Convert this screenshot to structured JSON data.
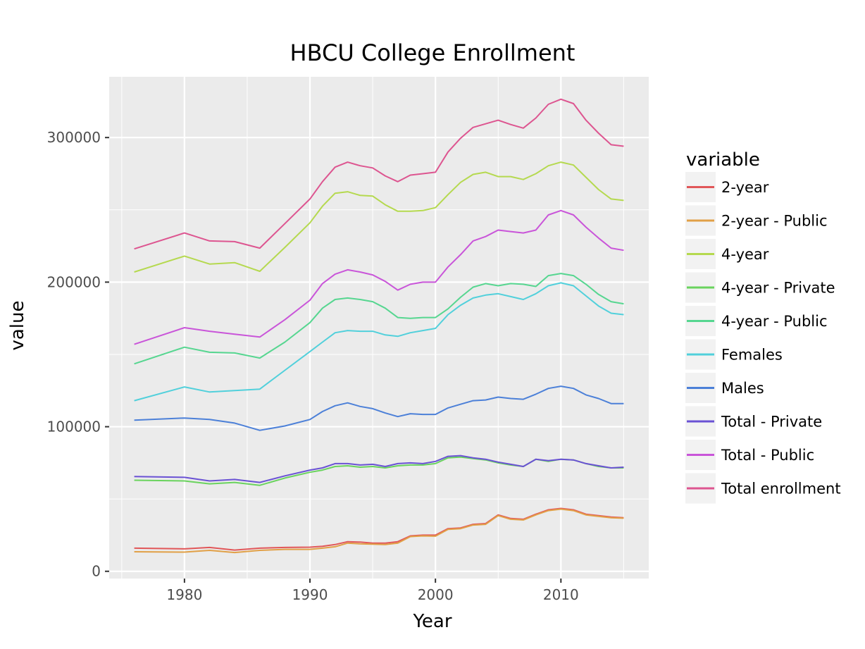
{
  "chart_data": {
    "type": "line",
    "title": "HBCU College Enrollment",
    "xlabel": "Year",
    "ylabel": "value",
    "xlim": [
      1974,
      2017
    ],
    "ylim": [
      -5000,
      342000
    ],
    "x_ticks": [
      1980,
      1990,
      2000,
      2010
    ],
    "y_ticks": [
      0,
      100000,
      200000,
      300000
    ],
    "y_tick_labels": [
      "0",
      "100000",
      "200000",
      "300000"
    ],
    "grid": true,
    "legend_title": "variable",
    "legend_position": "right",
    "x": [
      1976,
      1980,
      1982,
      1984,
      1986,
      1988,
      1990,
      1991,
      1992,
      1993,
      1994,
      1995,
      1996,
      1997,
      1998,
      1999,
      2000,
      2001,
      2002,
      2003,
      2004,
      2005,
      2006,
      2007,
      2008,
      2009,
      2010,
      2011,
      2012,
      2013,
      2014,
      2015
    ],
    "series": [
      {
        "name": "2-year",
        "color": "#e15759",
        "values": [
          16000,
          15500,
          16500,
          14700,
          16000,
          16500,
          16700,
          17300,
          18500,
          20500,
          20200,
          19500,
          19500,
          20500,
          24500,
          25000,
          25000,
          29500,
          30000,
          32500,
          33000,
          39000,
          36500,
          36000,
          39500,
          42500,
          43500,
          42500,
          39500,
          38500,
          37500,
          37000
        ]
      },
      {
        "name": "2-year - Public",
        "color": "#e1a047",
        "values": [
          13500,
          13300,
          14500,
          13000,
          14500,
          15200,
          15200,
          16000,
          17000,
          19500,
          19000,
          18800,
          18500,
          19500,
          24000,
          24500,
          24300,
          29000,
          29500,
          32000,
          32500,
          38500,
          36000,
          35500,
          39000,
          42000,
          43000,
          42000,
          39000,
          38000,
          37000,
          36700
        ]
      },
      {
        "name": "4-year",
        "color": "#b5d94f",
        "values": [
          207000,
          218000,
          212500,
          213500,
          207500,
          224000,
          241000,
          252500,
          261500,
          262500,
          260000,
          259500,
          253500,
          249000,
          249000,
          249500,
          251500,
          260500,
          269000,
          274500,
          276000,
          273000,
          273000,
          271000,
          275000,
          280500,
          283000,
          281000,
          272500,
          264000,
          257500,
          256500
        ]
      },
      {
        "name": "4-year - Private",
        "color": "#6ad35e",
        "values": [
          63000,
          62500,
          60500,
          61500,
          59500,
          64500,
          68500,
          70000,
          72500,
          73000,
          72000,
          72500,
          71500,
          73000,
          73500,
          73500,
          74500,
          78500,
          79000,
          78000,
          77000,
          75000,
          73500,
          72500,
          77500,
          76000,
          77500,
          77000,
          74500,
          72500,
          71500,
          71500
        ]
      },
      {
        "name": "4-year - Public",
        "color": "#56d690",
        "values": [
          143500,
          155000,
          151500,
          151000,
          147500,
          158500,
          172000,
          182000,
          188000,
          189000,
          188000,
          186500,
          182000,
          175500,
          175000,
          175500,
          175500,
          181500,
          189500,
          196500,
          199000,
          197500,
          199000,
          198500,
          197000,
          204500,
          206000,
          204500,
          198500,
          191500,
          186500,
          185000
        ]
      },
      {
        "name": "Females",
        "color": "#51d0db",
        "values": [
          118000,
          127500,
          124000,
          125000,
          126000,
          139000,
          152000,
          158500,
          165000,
          166500,
          166000,
          166000,
          163500,
          162500,
          165000,
          166500,
          168000,
          177500,
          184000,
          189000,
          191000,
          192000,
          190000,
          188000,
          192000,
          197500,
          199500,
          197500,
          190500,
          183500,
          178500,
          177500
        ]
      },
      {
        "name": "Males",
        "color": "#4c80d8",
        "values": [
          104500,
          106000,
          105000,
          102500,
          97500,
          100500,
          105000,
          110500,
          114500,
          116500,
          114000,
          112500,
          109500,
          107000,
          109000,
          108500,
          108500,
          113000,
          115500,
          118000,
          118500,
          120500,
          119500,
          119000,
          122500,
          126500,
          128000,
          126500,
          122000,
          119500,
          116000,
          116000
        ]
      },
      {
        "name": "Total - Private",
        "color": "#6a52d4",
        "values": [
          65500,
          65000,
          62500,
          63500,
          61500,
          66000,
          70000,
          71500,
          74500,
          74500,
          73500,
          74000,
          72500,
          74500,
          75000,
          74500,
          76000,
          79500,
          80000,
          78500,
          77500,
          75500,
          74000,
          72500,
          77500,
          76500,
          77500,
          77000,
          74500,
          73000,
          71500,
          72000
        ]
      },
      {
        "name": "Total - Public",
        "color": "#c955d9",
        "values": [
          157000,
          168500,
          166000,
          164000,
          162000,
          174000,
          187500,
          199000,
          205500,
          208500,
          207000,
          205000,
          200500,
          194500,
          198500,
          200000,
          200000,
          210500,
          219000,
          228500,
          231500,
          236000,
          235000,
          234000,
          236000,
          246500,
          249500,
          246500,
          238000,
          230500,
          223500,
          222000
        ]
      },
      {
        "name": "Total enrollment",
        "color": "#dd5590",
        "values": [
          223000,
          234000,
          228500,
          228000,
          223500,
          240500,
          257500,
          269500,
          279500,
          283000,
          280500,
          279000,
          273500,
          269500,
          274000,
          275000,
          276000,
          290000,
          299500,
          307000,
          309500,
          312000,
          309000,
          306500,
          313500,
          323000,
          326500,
          323500,
          312000,
          303000,
          295000,
          294000
        ]
      }
    ]
  }
}
